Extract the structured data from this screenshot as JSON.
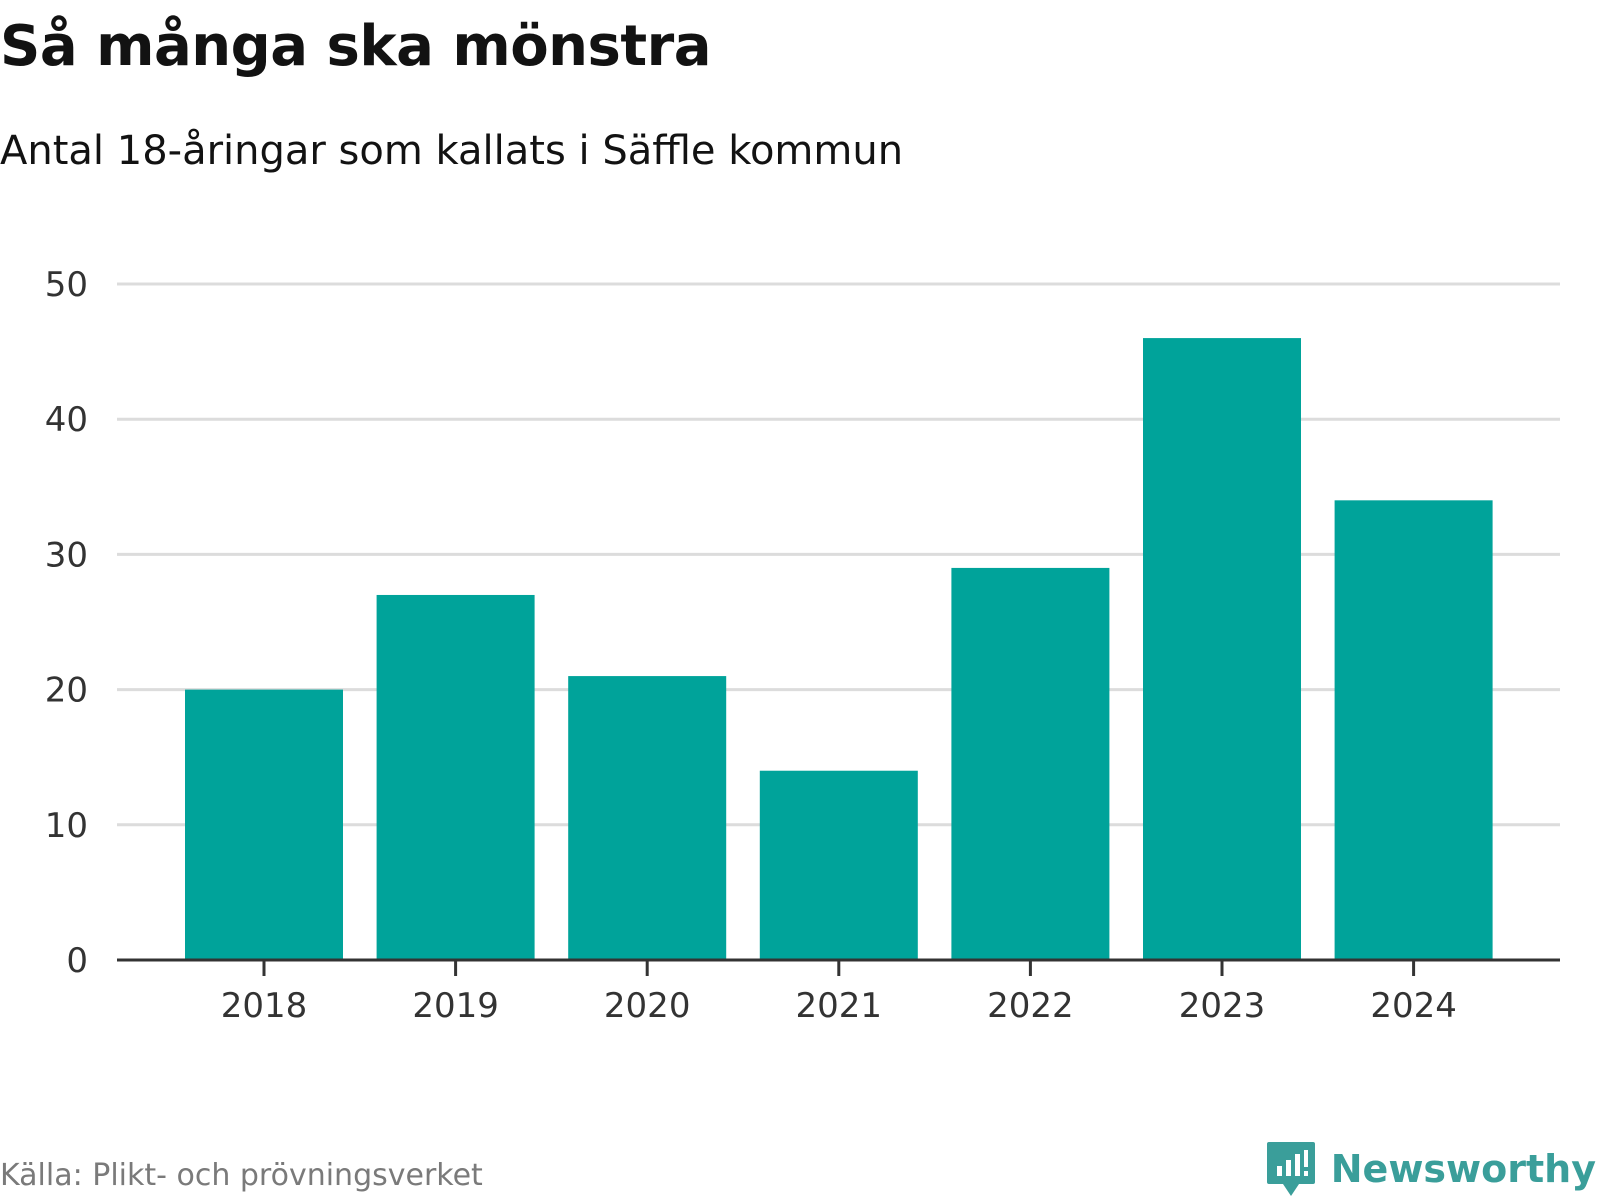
{
  "title": "Så många ska mönstra",
  "subtitle": "Antal 18-åringar som kallats i Säffle kommun",
  "source": "Källa: Plikt- och prövningsverket",
  "brand": "Newsworthy",
  "colors": {
    "bar": "#00A39A",
    "grid": "#dcdcdc",
    "axis": "#333333",
    "brand": "#3a9e9a"
  },
  "chart_data": {
    "type": "bar",
    "title": "Så många ska mönstra",
    "subtitle": "Antal 18-åringar som kallats i Säffle kommun",
    "xlabel": "",
    "ylabel": "",
    "categories": [
      "2018",
      "2019",
      "2020",
      "2021",
      "2022",
      "2023",
      "2024"
    ],
    "values": [
      20,
      27,
      21,
      14,
      29,
      46,
      34
    ],
    "ylim": [
      0,
      50
    ],
    "yticks": [
      0,
      10,
      20,
      30,
      40,
      50
    ],
    "grid": true,
    "legend": "none"
  }
}
